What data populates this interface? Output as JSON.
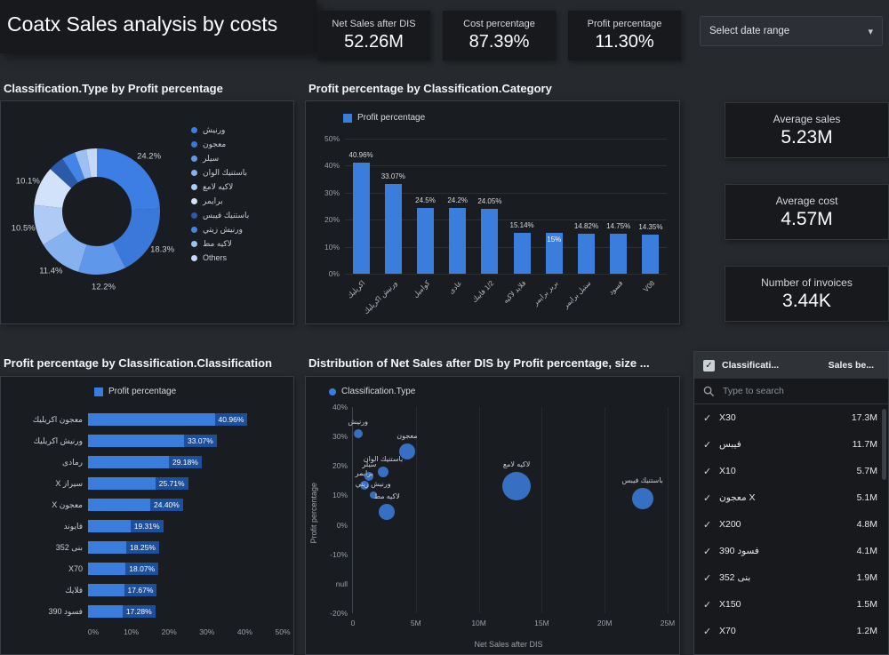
{
  "colors": {
    "accent": "#3b7ddd",
    "page_bg": "#26292d",
    "panel_bg": "#191c20",
    "card_bg": "#17191d",
    "chip_bg": "#1d4f9f",
    "donut_palette": [
      "#3d7ee4",
      "#3a78d9",
      "#5f97ea",
      "#86b2f0",
      "#aecbf6",
      "#d2e2fa",
      "#2a5aa8",
      "#4285e6",
      "#9dc0f4",
      "#c4d8f8"
    ]
  },
  "icons": {
    "check": "✓",
    "caret": "▾"
  },
  "header": {
    "title": "Coatx Sales analysis by costs",
    "kpis": [
      {
        "label": "Net Sales after DIS",
        "value": "52.26M"
      },
      {
        "label": "Cost percentage",
        "value": "87.39%"
      },
      {
        "label": "Profit percentage",
        "value": "11.30%"
      }
    ],
    "date_range_label": "Select date range"
  },
  "stat_cards": [
    {
      "label": "Average sales",
      "value": "5.23M"
    },
    {
      "label": "Average cost",
      "value": "4.57M"
    },
    {
      "label": "Number of invoices",
      "value": "3.44K"
    }
  ],
  "donut_panel": {
    "title": "Classification.Type by Profit percentage",
    "chart_data": {
      "type": "pie",
      "categories": [
        "ورنيش",
        "معجون",
        "سيلر",
        "باستنيك الوان",
        "لاكيه لامع",
        "برايمر",
        "باستنيك فيبس",
        "ورنيش زيتي",
        "لاكيه مط",
        "Others"
      ],
      "values": [
        24.2,
        18.3,
        12.2,
        11.4,
        10.5,
        10.1,
        4.0,
        3.5,
        3.0,
        2.8
      ],
      "labels_shown": [
        "24.2%",
        "18.3%",
        "12.2%",
        "11.4%",
        "10.5%",
        "10.1%",
        "",
        "",
        "",
        ""
      ],
      "legend_position": "right"
    }
  },
  "bar_panel": {
    "title": "Profit percentage by Classification.Category",
    "legend": "Profit percentage",
    "chart_data": {
      "type": "bar",
      "categories": [
        "اكريليك",
        "ورنيش اكريليك",
        "كواميل",
        "عادى",
        "1/2 فايبك",
        "فلايد لاكيه",
        "بريز برايمر",
        "ستيل برايمر",
        "فسود",
        "V08"
      ],
      "values": [
        40.96,
        33.07,
        24.5,
        24.2,
        24.05,
        15.14,
        15,
        14.82,
        14.75,
        14.35
      ],
      "value_labels": [
        "40.96%",
        "33.07%",
        "24.5%",
        "24.2%",
        "24.05%",
        "15.14%",
        "15%",
        "14.82%",
        "14.75%",
        "14.35%"
      ],
      "label_inside": [
        false,
        false,
        false,
        false,
        false,
        false,
        true,
        false,
        false,
        false
      ],
      "y_ticks": [
        "0%",
        "10%",
        "20%",
        "30%",
        "40%",
        "50%"
      ],
      "ylim": [
        0,
        50
      ]
    }
  },
  "hbar_panel": {
    "title": "Profit percentage by Classification.Classification",
    "legend": "Profit percentage",
    "chart_data": {
      "type": "bar",
      "orientation": "horizontal",
      "categories": [
        "معجون اكريليك",
        "ورنيش اكريليك",
        "رمادى",
        "سيراز X",
        "معجون X",
        "فايوند",
        "بنى 352",
        "X70",
        "فلايك",
        "فسود 390"
      ],
      "values": [
        40.96,
        33.07,
        29.18,
        25.71,
        24.4,
        19.31,
        18.25,
        18.07,
        17.67,
        17.28
      ],
      "value_labels": [
        "40.96%",
        "33.07%",
        "29.18%",
        "25.71%",
        "24.40%",
        "19.31%",
        "18.25%",
        "18.07%",
        "17.67%",
        "17.28%"
      ],
      "x_ticks": [
        "0%",
        "10%",
        "20%",
        "30%",
        "40%",
        "50%"
      ],
      "xlim": [
        0,
        50
      ]
    }
  },
  "scatter_panel": {
    "title": "Distribution of Net Sales after DIS by Profit percentage, size ...",
    "legend": "Classification.Type",
    "xlabel": "Net Sales after DIS",
    "ylabel": "Profit percentage",
    "chart_data": {
      "type": "scatter",
      "x_ticks": [
        "0",
        "5M",
        "10M",
        "15M",
        "20M",
        "25M"
      ],
      "y_ticks": [
        "40%",
        "30%",
        "20%",
        "10%",
        "0%",
        "-10%",
        "null",
        "-20%"
      ],
      "xlim_m": [
        0,
        25
      ],
      "points": [
        {
          "label": "ورنيش",
          "x": 0.4,
          "y": 31,
          "r": 5
        },
        {
          "label": "معجون",
          "x": 4.3,
          "y": 25,
          "r": 9
        },
        {
          "label": "باستنيك الوان",
          "x": 2.4,
          "y": 18,
          "r": 6
        },
        {
          "label": "سيلر",
          "x": 1.3,
          "y": 16.5,
          "r": 5
        },
        {
          "label": "برايمر",
          "x": 0.9,
          "y": 13.5,
          "r": 5
        },
        {
          "label": "ورنيش زيتي",
          "x": 1.6,
          "y": 10,
          "r": 4
        },
        {
          "label": "لاكيه لامع",
          "x": 13,
          "y": 13,
          "r": 16
        },
        {
          "label": "لاكيه مط",
          "x": 2.7,
          "y": 4.5,
          "r": 9
        },
        {
          "label": "باستنيك فيبس",
          "x": 23,
          "y": 9,
          "r": 12
        }
      ]
    }
  },
  "slicer": {
    "col1": "Classificati...",
    "col2": "Sales be...",
    "search_placeholder": "Type to search",
    "rows": [
      {
        "name": "X30",
        "value": "17.3M"
      },
      {
        "name": "فيبس",
        "value": "11.7M"
      },
      {
        "name": "X10",
        "value": "5.7M"
      },
      {
        "name": "معجون X",
        "value": "5.1M"
      },
      {
        "name": "X200",
        "value": "4.8M"
      },
      {
        "name": "فسود 390",
        "value": "4.1M"
      },
      {
        "name": "بنى 352",
        "value": "1.9M"
      },
      {
        "name": "X150",
        "value": "1.5M"
      },
      {
        "name": "X70",
        "value": "1.2M"
      }
    ]
  }
}
